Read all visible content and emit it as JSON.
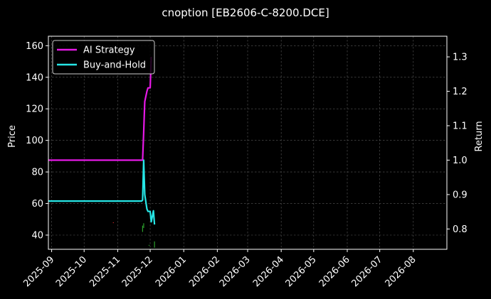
{
  "chart_data": {
    "type": "line",
    "title": "cnoption [EB2606-C-8200.DCE]",
    "xlabel": "",
    "ylabel": "Price",
    "y2label": "Return",
    "ylim": [
      31,
      166
    ],
    "y2lim": [
      0.741,
      1.36
    ],
    "xlim": [
      "2025-08-29",
      "2026-09-01"
    ],
    "grid": true,
    "legend_position": "top-left",
    "yticks": [
      40,
      60,
      80,
      100,
      120,
      140,
      160
    ],
    "y2ticks": [
      0.8,
      0.9,
      1.0,
      1.1,
      1.2,
      1.3
    ],
    "y2tick_labels": [
      "0.8",
      "0.9",
      "1.0",
      "1.1",
      "1.2",
      "1.3"
    ],
    "xticks": [
      "2025-09-01",
      "2025-10-01",
      "2025-11-01",
      "2025-12-01",
      "2026-01-01",
      "2026-02-01",
      "2026-03-01",
      "2026-04-01",
      "2026-05-01",
      "2026-06-01",
      "2026-07-01",
      "2026-08-01"
    ],
    "xtick_labels": [
      "2025-09",
      "2025-10",
      "2025-11",
      "2025-12",
      "2026-01",
      "2026-02",
      "2026-03",
      "2026-04",
      "2026-05",
      "2026-06",
      "2026-07",
      "2026-08"
    ],
    "series": [
      {
        "name": "AI Strategy",
        "axis": "right",
        "color": "#e619e6",
        "points": [
          [
            "2025-08-29",
            1.0
          ],
          [
            "2025-11-24",
            1.0
          ],
          [
            "2025-11-25",
            1.08
          ],
          [
            "2025-11-26",
            1.17
          ],
          [
            "2025-11-28",
            1.2
          ],
          [
            "2025-11-29",
            1.21
          ],
          [
            "2025-12-01",
            1.21
          ],
          [
            "2025-12-02",
            1.3
          ]
        ]
      },
      {
        "name": "Buy-and-Hold",
        "axis": "right",
        "color": "#26e6e6",
        "points": [
          [
            "2025-08-29",
            0.881
          ],
          [
            "2025-11-23",
            0.881
          ],
          [
            "2025-11-24",
            0.884
          ],
          [
            "2025-11-25",
            1.0
          ],
          [
            "2025-11-26",
            0.9
          ],
          [
            "2025-11-28",
            0.858
          ],
          [
            "2025-11-29",
            0.851
          ],
          [
            "2025-11-30",
            0.851
          ],
          [
            "2025-12-01",
            0.851
          ],
          [
            "2025-12-02",
            0.821
          ],
          [
            "2025-12-04",
            0.853
          ],
          [
            "2025-12-05",
            0.813
          ]
        ]
      }
    ],
    "price_marks": [
      {
        "date": "2025-10-28",
        "low": 47.6,
        "high": 48.1,
        "color": "#d62728"
      },
      {
        "date": "2025-11-24",
        "low": 42.0,
        "high": 46.0,
        "color": "#2ca02c"
      },
      {
        "date": "2025-11-25",
        "low": 44.5,
        "high": 47.5,
        "color": "#2ca02c"
      },
      {
        "date": "2025-11-30",
        "low": 33.2,
        "high": 33.8,
        "color": "#2ca02c"
      },
      {
        "date": "2025-12-05",
        "low": 32.0,
        "high": 36.0,
        "color": "#2ca02c"
      }
    ]
  }
}
